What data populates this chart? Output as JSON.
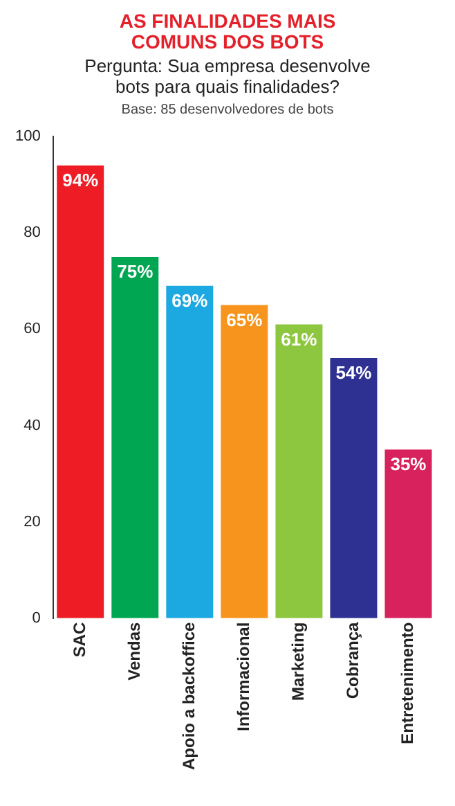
{
  "chart_data": {
    "type": "bar",
    "title": "AS FINALIDADES MAIS COMUNS DOS BOTS",
    "subtitle": "Pergunta: Sua empresa desenvolve bots para quais finalidades?",
    "annotations": [
      "Base: 85 desenvolvedores de bots"
    ],
    "categories": [
      "SAC",
      "Vendas",
      "Apoio a backoffice",
      "Informacional",
      "Marketing",
      "Cobrança",
      "Entretenimento"
    ],
    "values": [
      94,
      75,
      69,
      65,
      61,
      54,
      35
    ],
    "colors": [
      "#ee1c25",
      "#00a651",
      "#1ca8e0",
      "#f7941d",
      "#8dc63f",
      "#2e3192",
      "#d7225e"
    ],
    "value_labels": [
      "94%",
      "75%",
      "69%",
      "65%",
      "61%",
      "54%",
      "35%"
    ],
    "ylim": [
      0,
      100
    ],
    "yticks": [
      0,
      20,
      40,
      60,
      80,
      100
    ],
    "grid": false,
    "legend": false
  }
}
